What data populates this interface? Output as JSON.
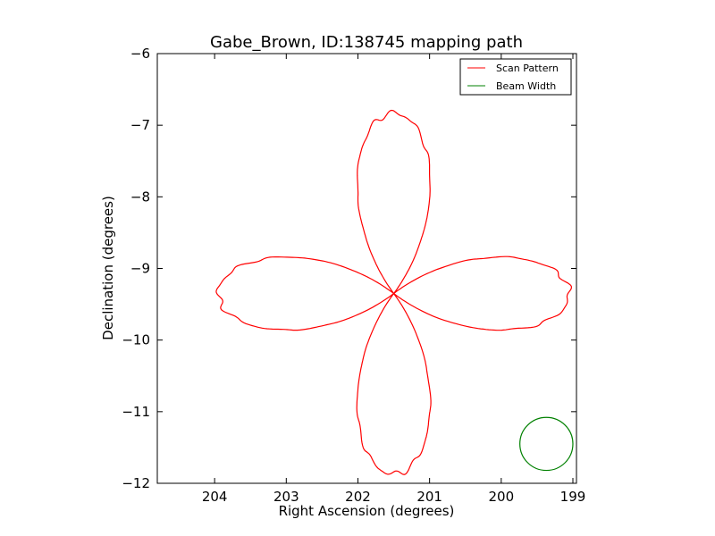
{
  "chart_data": {
    "type": "line",
    "title": "Gabe_Brown, ID:138745 mapping path",
    "xlabel": "Right Ascension (degrees)",
    "ylabel": "Declination (degrees)",
    "xlim": [
      204.8,
      198.95
    ],
    "ylim": [
      -12,
      -6
    ],
    "xticks": [
      204,
      203,
      202,
      201,
      200,
      199
    ],
    "yticks": [
      -6,
      -7,
      -8,
      -9,
      -10,
      -11,
      -12
    ],
    "xtick_labels": [
      "204",
      "203",
      "202",
      "201",
      "200",
      "199"
    ],
    "ytick_labels": [
      "−6",
      "−7",
      "−8",
      "−9",
      "−10",
      "−11",
      "−12"
    ],
    "grid": false,
    "legend_position": "top-right",
    "series": [
      {
        "name": "Scan Pattern",
        "color": "#ff0000",
        "shape": "four-petal rosette",
        "center": [
          201.5,
          -9.35
        ],
        "petal_length_ra": 2.45,
        "petal_length_dec": 2.52,
        "petal_width_ra": 0.72,
        "petal_width_dec": 0.72
      },
      {
        "name": "Beam Width",
        "color": "#008000",
        "shape": "circle",
        "center": [
          199.37,
          -11.45
        ],
        "radius_dec": 0.37
      }
    ]
  }
}
